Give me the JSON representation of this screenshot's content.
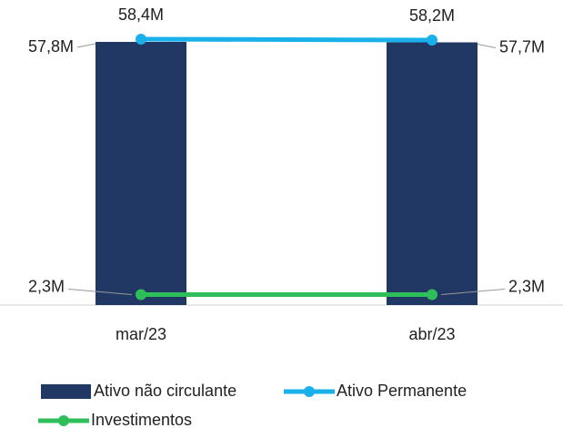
{
  "chart_data": {
    "type": "bar_line",
    "categories": [
      "mar/23",
      "abr/23"
    ],
    "ylim": [
      0,
      60
    ],
    "series": [
      {
        "name": "Ativo não circulante",
        "type": "bar",
        "color": "#213864",
        "values": [
          57.8,
          57.7
        ],
        "value_labels": [
          "57,8M",
          "57,7M"
        ]
      },
      {
        "name": "Ativo Permanente",
        "type": "line",
        "color": "#1ab0ea",
        "values": [
          58.4,
          58.2
        ],
        "value_labels": [
          "58,4M",
          "58,2M"
        ]
      },
      {
        "name": "Investimentos",
        "type": "line",
        "color": "#2fbf5a",
        "values": [
          2.3,
          2.3
        ],
        "value_labels": [
          "2,3M",
          "2,3M"
        ]
      }
    ]
  }
}
